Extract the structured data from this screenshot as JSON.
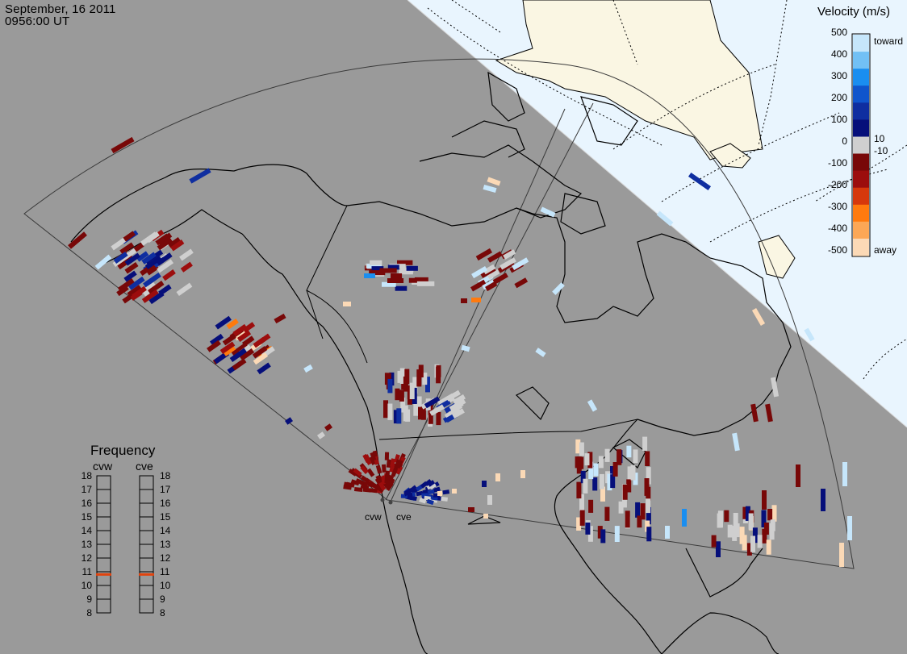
{
  "header": {
    "date": "September, 16 2011",
    "time": "0956:00 UT"
  },
  "velocity_scale": {
    "title": "Velocity (m/s)",
    "ticks": [
      "500",
      "400",
      "300",
      "200",
      "100",
      "0",
      "-100",
      "-200",
      "-300",
      "-400",
      "-500"
    ],
    "toward_label": "toward",
    "away_label": "away",
    "inner_pos_label": "10",
    "inner_neg_label": "-10",
    "colors": [
      "#fbd9b6",
      "#fca756",
      "#ff7a0e",
      "#d6380c",
      "#9c0d0d",
      "#780808",
      "#cfcfcf",
      "#060f7a",
      "#0f2ea0",
      "#1055cc",
      "#1a8ef0",
      "#72c0f5",
      "#c6e6fb"
    ]
  },
  "frequency": {
    "title": "Frequency",
    "radars": [
      {
        "name": "cvw",
        "value_mhz": 10.8
      },
      {
        "name": "cve",
        "value_mhz": 10.8
      }
    ],
    "ticks": [
      "18",
      "17",
      "16",
      "15",
      "14",
      "13",
      "12",
      "11",
      "10",
      "9",
      "8"
    ],
    "marker_color": "#e0440e"
  },
  "sites": [
    {
      "code": "cvw"
    },
    {
      "code": "cve"
    }
  ],
  "map_colors": {
    "background": "#9a9a9a",
    "ocean_sunlit": "#e9f5fe",
    "land_sunlit": "#faf6e3",
    "ground_scatter": "#cfcfcf"
  }
}
